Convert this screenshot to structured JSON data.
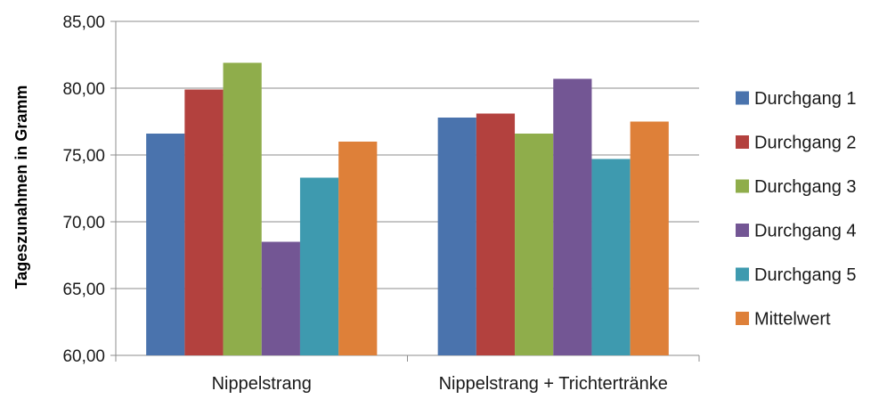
{
  "chart_data": {
    "type": "bar",
    "categories": [
      "Nippelstrang",
      "Nippelstrang + Trichtertränke"
    ],
    "series": [
      {
        "name": "Durchgang 1",
        "color": "#4a73ad",
        "values": [
          76.6,
          77.8
        ]
      },
      {
        "name": "Durchgang 2",
        "color": "#b3413e",
        "values": [
          79.9,
          78.1
        ]
      },
      {
        "name": "Durchgang 3",
        "color": "#8fad4b",
        "values": [
          81.9,
          76.6
        ]
      },
      {
        "name": "Durchgang 4",
        "color": "#735694",
        "values": [
          68.5,
          80.7
        ]
      },
      {
        "name": "Durchgang 5",
        "color": "#3e9aaf",
        "values": [
          73.3,
          74.7
        ]
      },
      {
        "name": "Mittelwert",
        "color": "#de8039",
        "values": [
          76.0,
          77.5
        ]
      }
    ],
    "title": "",
    "xlabel": "",
    "ylabel": "Tageszunahmen in Gramm",
    "ylim": [
      60,
      85
    ],
    "yticks": [
      "60,00",
      "65,00",
      "70,00",
      "75,00",
      "80,00",
      "85,00"
    ],
    "grid": true,
    "legend_position": "right"
  }
}
